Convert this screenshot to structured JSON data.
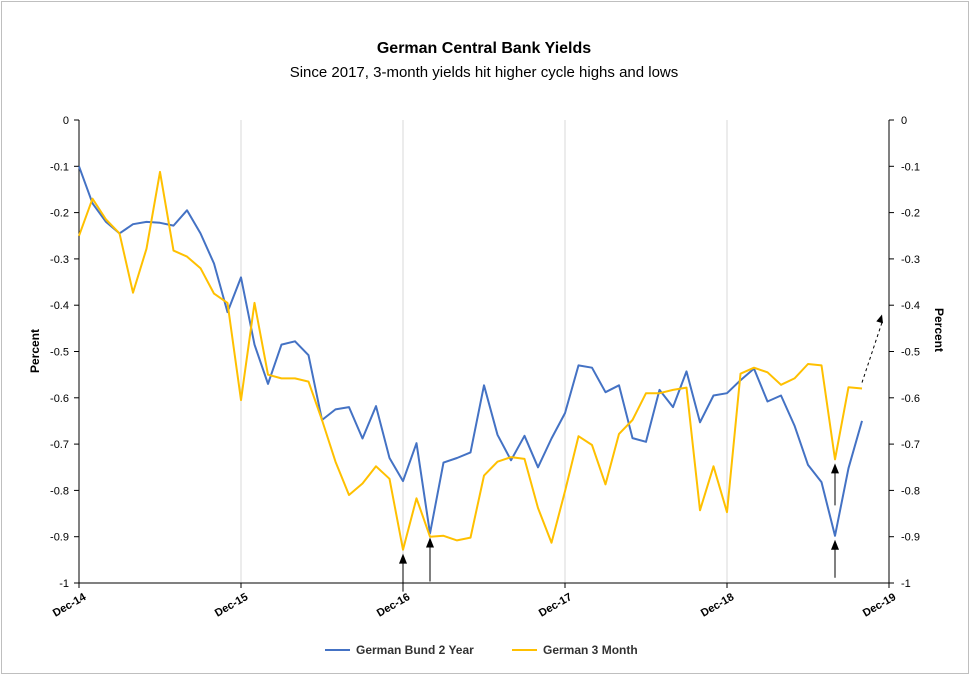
{
  "chart_data": {
    "type": "line",
    "title": "German Central Bank Yields",
    "subtitle": "Since 2017, 3-month yields hit higher cycle highs and lows",
    "ylabel_left": "Percent",
    "ylabel_right": "Percent",
    "ylim": [
      -1,
      0
    ],
    "yticks": [
      0,
      -0.1,
      -0.2,
      -0.3,
      -0.4,
      -0.5,
      -0.6,
      -0.7,
      -0.8,
      -0.9,
      -1
    ],
    "ytick_labels": [
      "0",
      "-0.1",
      "-0.2",
      "-0.3",
      "-0.4",
      "-0.5",
      "-0.6",
      "-0.7",
      "-0.8",
      "-0.9",
      "-1"
    ],
    "xticks": [
      "Dec-14",
      "Dec-15",
      "Dec-16",
      "Dec-17",
      "Dec-18",
      "Dec-19"
    ],
    "grid": "vertical",
    "legend": "bottom",
    "series": [
      {
        "name": "German Bund 2 Year",
        "color": "#4472c4",
        "values": [
          -0.1,
          -0.18,
          -0.22,
          -0.245,
          -0.225,
          -0.22,
          -0.222,
          -0.228,
          -0.195,
          -0.245,
          -0.31,
          -0.415,
          -0.34,
          -0.485,
          -0.57,
          -0.485,
          -0.478,
          -0.508,
          -0.648,
          -0.625,
          -0.62,
          -0.688,
          -0.618,
          -0.73,
          -0.78,
          -0.698,
          -0.893,
          -0.74,
          -0.73,
          -0.718,
          -0.573,
          -0.68,
          -0.735,
          -0.682,
          -0.75,
          -0.688,
          -0.633,
          -0.53,
          -0.535,
          -0.588,
          -0.573,
          -0.687,
          -0.695,
          -0.583,
          -0.62,
          -0.543,
          -0.653,
          -0.595,
          -0.59,
          -0.562,
          -0.537,
          -0.608,
          -0.595,
          -0.66,
          -0.745,
          -0.782,
          -0.898,
          -0.752,
          -0.65
        ]
      },
      {
        "name": "German 3 Month",
        "color": "#ffc000",
        "values": [
          -0.25,
          -0.17,
          -0.215,
          -0.245,
          -0.373,
          -0.278,
          -0.112,
          -0.282,
          -0.295,
          -0.32,
          -0.375,
          -0.395,
          -0.605,
          -0.395,
          -0.55,
          -0.558,
          -0.558,
          -0.565,
          -0.648,
          -0.738,
          -0.81,
          -0.785,
          -0.748,
          -0.775,
          -0.928,
          -0.817,
          -0.9,
          -0.898,
          -0.908,
          -0.902,
          -0.768,
          -0.738,
          -0.728,
          -0.732,
          -0.838,
          -0.913,
          -0.802,
          -0.683,
          -0.702,
          -0.787,
          -0.678,
          -0.648,
          -0.59,
          -0.59,
          -0.583,
          -0.578,
          -0.843,
          -0.748,
          -0.847,
          -0.548,
          -0.535,
          -0.545,
          -0.572,
          -0.558,
          -0.527,
          -0.53,
          -0.733,
          -0.577,
          -0.58
        ]
      }
    ],
    "annotations": [
      {
        "type": "arrow",
        "at": "Dec-16",
        "series": "German 3 Month"
      },
      {
        "type": "arrow",
        "at": "Feb-17",
        "series": "German Bund 2 Year"
      },
      {
        "type": "arrow",
        "at": "Aug-19",
        "series": "German 3 Month"
      },
      {
        "type": "arrow",
        "at": "Aug-19",
        "series": "German Bund 2 Year"
      },
      {
        "type": "dashed-arrow",
        "at": "Oct-19",
        "series": "German 3 Month",
        "direction": "up"
      }
    ]
  }
}
